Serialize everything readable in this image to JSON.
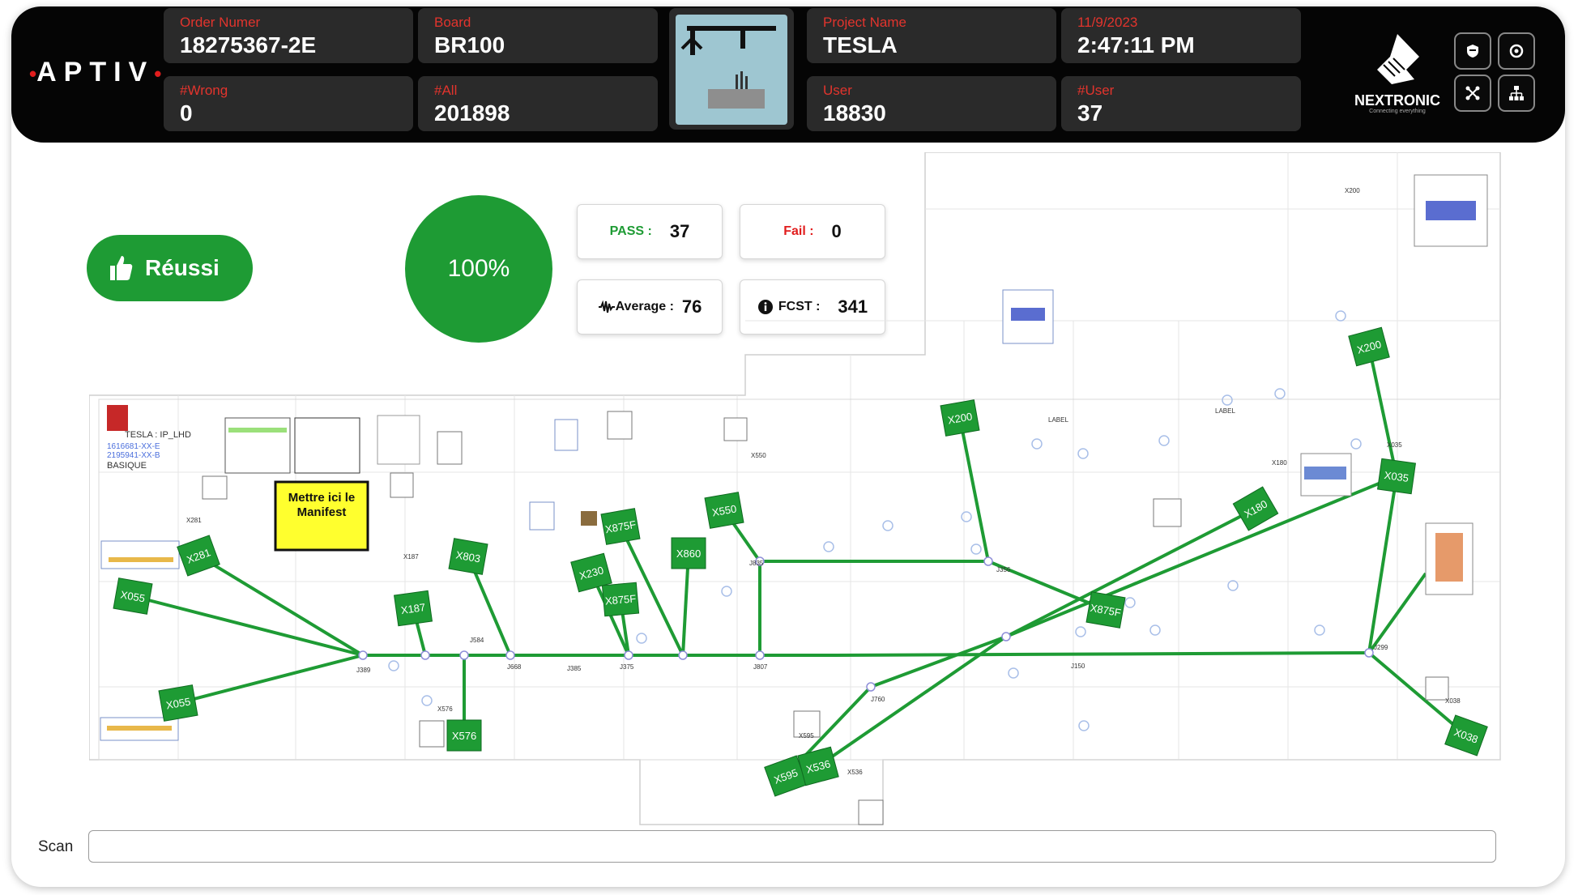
{
  "header": {
    "logo_text": "APTIV",
    "order": {
      "label": "Order Numer",
      "value": "18275367-2E"
    },
    "board": {
      "label": "Board",
      "value": "BR100"
    },
    "project": {
      "label": "Project Name",
      "value": "TESLA"
    },
    "date": {
      "label": "11/9/2023",
      "value": "2:47:11 PM"
    },
    "wrong": {
      "label": "#Wrong",
      "value": "0"
    },
    "all": {
      "label": "#All",
      "value": "201898"
    },
    "user": {
      "label": "User",
      "value": "18830"
    },
    "user_count": {
      "label": "#User",
      "value": "37"
    },
    "brand": {
      "name": "NEXTRONIC",
      "tagline": "Connecting everything"
    },
    "icons": [
      "shield-icon",
      "settings-icon",
      "network-icon",
      "hierarchy-icon"
    ]
  },
  "status": {
    "result_label": "Réussi",
    "percent": "100%",
    "pass": {
      "label": "PASS :",
      "value": "37"
    },
    "fail": {
      "label": "Fail :",
      "value": "0"
    },
    "average": {
      "label": "Average :",
      "value": "76"
    },
    "fcst": {
      "label": "FCST :",
      "value": "341"
    }
  },
  "diagram": {
    "tesla_text": "TESLA : IP_LHD",
    "pn_1": "1616681-XX-E",
    "pn_2": "2195941-XX-B",
    "basique": "BASIQUE",
    "manifest": "Mettre ici le Manifest",
    "connectors": [
      "X281",
      "X055",
      "X055",
      "X187",
      "X803",
      "X875F",
      "X860",
      "X550",
      "X230",
      "X875F",
      "X576",
      "X200",
      "X875F",
      "X180",
      "X200",
      "X035",
      "X038",
      "X595",
      "X536"
    ]
  },
  "scan": {
    "label": "Scan",
    "value": ""
  },
  "colors": {
    "accent_green": "#1e9b34",
    "header_bg": "#050505",
    "label_red": "#e2342d"
  }
}
